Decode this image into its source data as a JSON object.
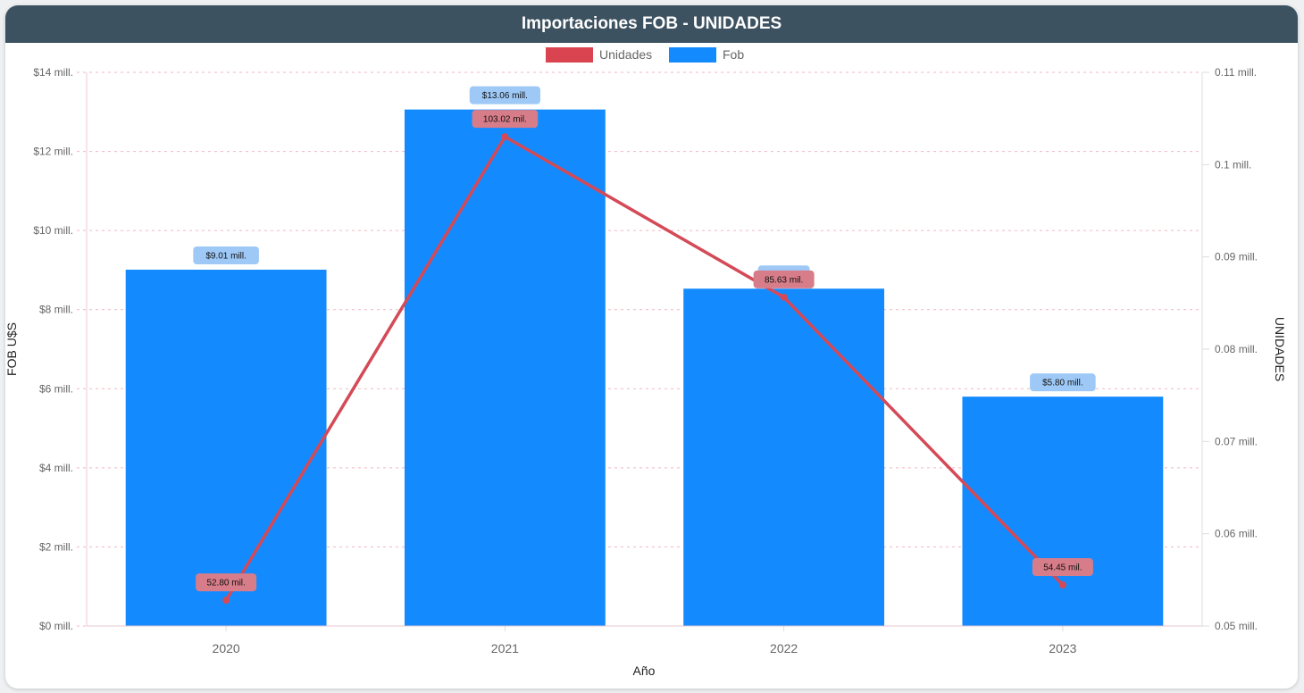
{
  "header": {
    "title": "Importaciones FOB - UNIDADES"
  },
  "legend": [
    {
      "label": "Unidades",
      "color": "#d94450"
    },
    {
      "label": "Fob",
      "color": "#138bff"
    }
  ],
  "colors": {
    "bar": "#138bff",
    "line": "#d44a57",
    "barLabelBg": "#9ec9f7",
    "lineLabelBg": "#d77d89",
    "grid": "#f2b7c2"
  },
  "chart_data": {
    "type": "bar",
    "categories": [
      "2020",
      "2021",
      "2022",
      "2023"
    ],
    "xlabel": "Año",
    "ylabel": "FOB U$S",
    "y2label": "UNIDADES",
    "ylim": [
      0,
      14000000
    ],
    "y2lim": [
      50000,
      110000
    ],
    "yticks": [
      "$0 mill.",
      "$2 mill.",
      "$4 mill.",
      "$6 mill.",
      "$8 mill.",
      "$10 mill.",
      "$12 mill.",
      "$14 mill."
    ],
    "y2ticks": [
      "0.05 mill.",
      "0.06 mill.",
      "0.07 mill.",
      "0.08 mill.",
      "0.09 mill.",
      "0.1 mill.",
      "0.11 mill."
    ],
    "grid": true,
    "legend_position": "top-center",
    "series": [
      {
        "name": "Fob",
        "type": "bar",
        "axis": "left",
        "values": [
          9010000,
          13060000,
          8530000,
          5800000
        ],
        "labels": [
          "$9.01 mill.",
          "$13.06 mill.",
          "",
          "$5.80 mill."
        ]
      },
      {
        "name": "Unidades",
        "type": "line",
        "axis": "right",
        "values": [
          52800,
          103020,
          85630,
          54450
        ],
        "labels": [
          "52.80 mil.",
          "103.02 mil.",
          "85.63 mil.",
          "54.45 mil."
        ]
      }
    ]
  }
}
